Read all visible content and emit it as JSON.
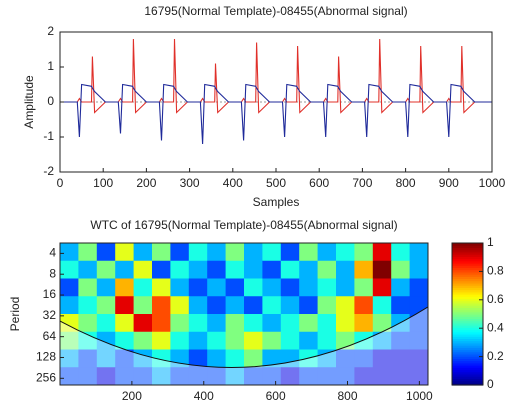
{
  "chart_data": [
    {
      "type": "line",
      "title": "16795(Normal Template)-08455(Abnormal signal)",
      "x_label": "Samples",
      "y_label": "Amplitude",
      "x": [
        0,
        40,
        45,
        50,
        73,
        75,
        80,
        105,
        135,
        140,
        145,
        168,
        170,
        175,
        200,
        230,
        235,
        240,
        263,
        265,
        270,
        295,
        325,
        330,
        335,
        358,
        360,
        365,
        390,
        420,
        425,
        430,
        453,
        455,
        460,
        485,
        515,
        520,
        525,
        548,
        550,
        555,
        580,
        610,
        615,
        620,
        643,
        645,
        650,
        675,
        705,
        710,
        715,
        738,
        740,
        745,
        770,
        800,
        805,
        810,
        833,
        835,
        840,
        865,
        895,
        900,
        905,
        928,
        930,
        935,
        960,
        1000
      ],
      "series": [
        {
          "color": "#e0302a",
          "values": [
            0,
            0,
            0.1,
            0,
            0,
            1.3,
            -0.3,
            0,
            0,
            0.1,
            0,
            0,
            1.8,
            -0.3,
            0,
            0,
            0.1,
            0,
            0,
            1.8,
            -0.3,
            0,
            0,
            0.1,
            0,
            0,
            1.1,
            -0.3,
            0,
            0,
            0.1,
            0,
            0,
            1.7,
            -0.3,
            0,
            0,
            0.1,
            0,
            0,
            1.6,
            -0.3,
            0,
            0,
            0.1,
            0,
            0,
            1.3,
            -0.3,
            0,
            0,
            0.1,
            0,
            0,
            1.8,
            -0.3,
            0,
            0,
            0.1,
            0,
            0,
            1.6,
            -0.3,
            0,
            0,
            0.1,
            0,
            0,
            1.6,
            -0.3,
            0,
            0
          ]
        },
        {
          "color": "#1f2a9a",
          "values": [
            0,
            0,
            -1.0,
            0.5,
            0.45,
            0.4,
            0.3,
            0,
            0,
            -0.9,
            0.5,
            0.45,
            0.4,
            0.3,
            0,
            0,
            -1.1,
            0.5,
            0.45,
            0.4,
            0.3,
            0,
            0,
            -1.2,
            0.5,
            0.45,
            0.4,
            0.3,
            0,
            0,
            -1.1,
            0.5,
            0.45,
            0.4,
            0.3,
            0,
            0,
            -1.0,
            0.5,
            0.45,
            0.4,
            0.3,
            0,
            0,
            -1.0,
            0.5,
            0.45,
            0.4,
            0.3,
            0,
            0,
            -1.0,
            0.5,
            0.45,
            0.4,
            0.3,
            0,
            0,
            -1.0,
            0.5,
            0.45,
            0.4,
            0.3,
            0,
            0,
            -1.0,
            0.5,
            0.45,
            0.4,
            0.3,
            0,
            0
          ]
        }
      ],
      "xlim": [
        0,
        1000
      ],
      "xticks": [
        0,
        100,
        200,
        300,
        400,
        500,
        600,
        700,
        800,
        900,
        1000
      ],
      "ylim": [
        -2,
        2
      ],
      "yticks": [
        -2,
        -1,
        0,
        1,
        2
      ]
    },
    {
      "type": "heatmap",
      "title": "WTC of 16795(Normal Template)-08455(Abnormal signal)",
      "y_label": "Period",
      "y_log": true,
      "xlim": [
        0,
        1024
      ],
      "xticks": [
        200,
        400,
        600,
        800,
        1000
      ],
      "ylim": [
        2.83,
        320
      ],
      "yticks": [
        4,
        8,
        16,
        32,
        64,
        128,
        256
      ],
      "clim": [
        0,
        1
      ],
      "cticks": [
        0,
        0.2,
        0.4,
        0.6,
        0.8,
        1
      ],
      "z": [
        [
          0.3,
          0.5,
          0.2,
          0.6,
          0.3,
          0.5,
          0.2,
          0.4,
          0.3,
          0.5,
          0.3,
          0.4,
          0.2,
          0.5,
          0.3,
          0.4,
          0.5,
          0.9,
          0.4,
          0.3
        ],
        [
          0.4,
          0.3,
          0.5,
          0.3,
          0.6,
          0.2,
          0.4,
          0.3,
          0.2,
          0.4,
          0.3,
          0.2,
          0.4,
          0.3,
          0.5,
          0.3,
          0.7,
          1.0,
          0.5,
          0.3
        ],
        [
          0.2,
          0.5,
          0.3,
          0.7,
          0.4,
          0.6,
          0.3,
          0.2,
          0.3,
          0.2,
          0.4,
          0.3,
          0.2,
          0.3,
          0.4,
          0.3,
          0.5,
          0.9,
          0.3,
          0.2
        ],
        [
          0.3,
          0.4,
          0.5,
          0.9,
          0.5,
          0.8,
          0.6,
          0.3,
          0.2,
          0.3,
          0.2,
          0.4,
          0.3,
          0.2,
          0.5,
          0.6,
          0.8,
          0.4,
          0.2,
          0.2
        ],
        [
          0.6,
          0.5,
          0.4,
          0.6,
          0.9,
          0.8,
          0.5,
          0.4,
          0.3,
          0.5,
          0.4,
          0.3,
          0.4,
          0.5,
          0.4,
          0.6,
          0.7,
          0.5,
          0.3,
          0.2
        ],
        [
          0.5,
          0.4,
          0.3,
          0.4,
          0.5,
          0.6,
          0.4,
          0.3,
          0.4,
          0.5,
          0.6,
          0.5,
          0.4,
          0.3,
          0.4,
          0.5,
          0.4,
          0.3,
          0.2,
          0.2
        ],
        [
          0.3,
          0.2,
          0.3,
          0.2,
          0.3,
          0.4,
          0.3,
          0.2,
          0.3,
          0.4,
          0.5,
          0.3,
          0.3,
          0.4,
          0.3,
          0.2,
          0.2,
          0.1,
          0.1,
          0.1
        ],
        [
          0.2,
          0.2,
          0.1,
          0.2,
          0.2,
          0.3,
          0.2,
          0.2,
          0.2,
          0.3,
          0.2,
          0.2,
          0.1,
          0.2,
          0.2,
          0.2,
          0.1,
          0.1,
          0.1,
          0.1
        ]
      ]
    }
  ]
}
